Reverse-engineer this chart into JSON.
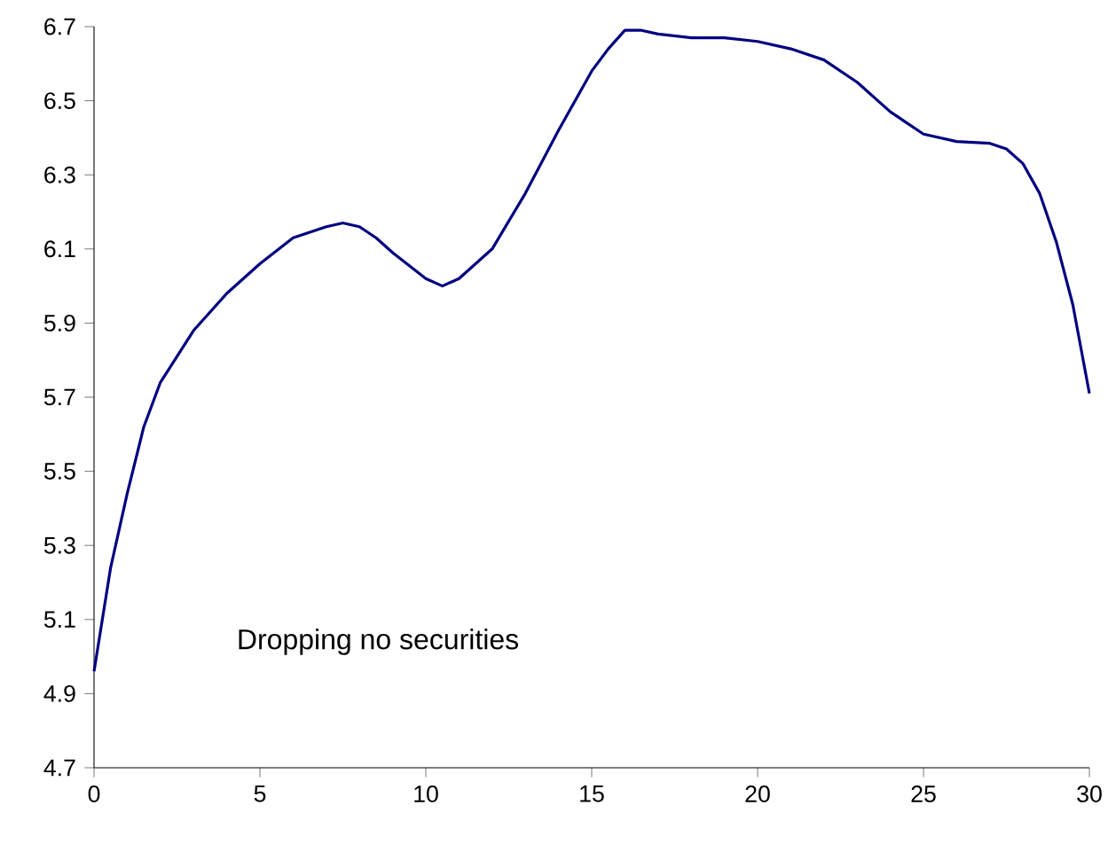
{
  "chart_data": {
    "type": "line",
    "color": "#000080",
    "x": [
      0,
      0.5,
      1,
      1.5,
      2,
      3,
      4,
      5,
      6,
      7,
      7.5,
      8,
      8.5,
      9,
      10,
      10.5,
      11,
      12,
      13,
      14,
      15,
      15.5,
      16,
      16.5,
      17,
      18,
      19,
      20,
      21,
      22,
      23,
      24,
      25,
      26,
      27,
      27.5,
      28,
      28.5,
      29,
      29.5,
      30
    ],
    "values": [
      4.96,
      5.24,
      5.44,
      5.62,
      5.74,
      5.88,
      5.98,
      6.06,
      6.13,
      6.16,
      6.17,
      6.16,
      6.13,
      6.09,
      6.02,
      6.0,
      6.02,
      6.1,
      6.25,
      6.42,
      6.58,
      6.64,
      6.69,
      6.69,
      6.68,
      6.67,
      6.67,
      6.66,
      6.64,
      6.61,
      6.55,
      6.47,
      6.41,
      6.39,
      6.385,
      6.37,
      6.33,
      6.25,
      6.12,
      5.95,
      5.71
    ],
    "xlim": [
      0,
      30
    ],
    "ylim": [
      4.7,
      6.7
    ],
    "xticks": [
      0,
      5,
      10,
      15,
      20,
      25,
      30
    ],
    "yticks": [
      4.7,
      4.9,
      5.1,
      5.3,
      5.5,
      5.7,
      5.9,
      6.1,
      6.3,
      6.5,
      6.7
    ],
    "grid": false,
    "marker": "none",
    "line_style": "solid",
    "annotations": [
      "Dropping no securities"
    ]
  }
}
